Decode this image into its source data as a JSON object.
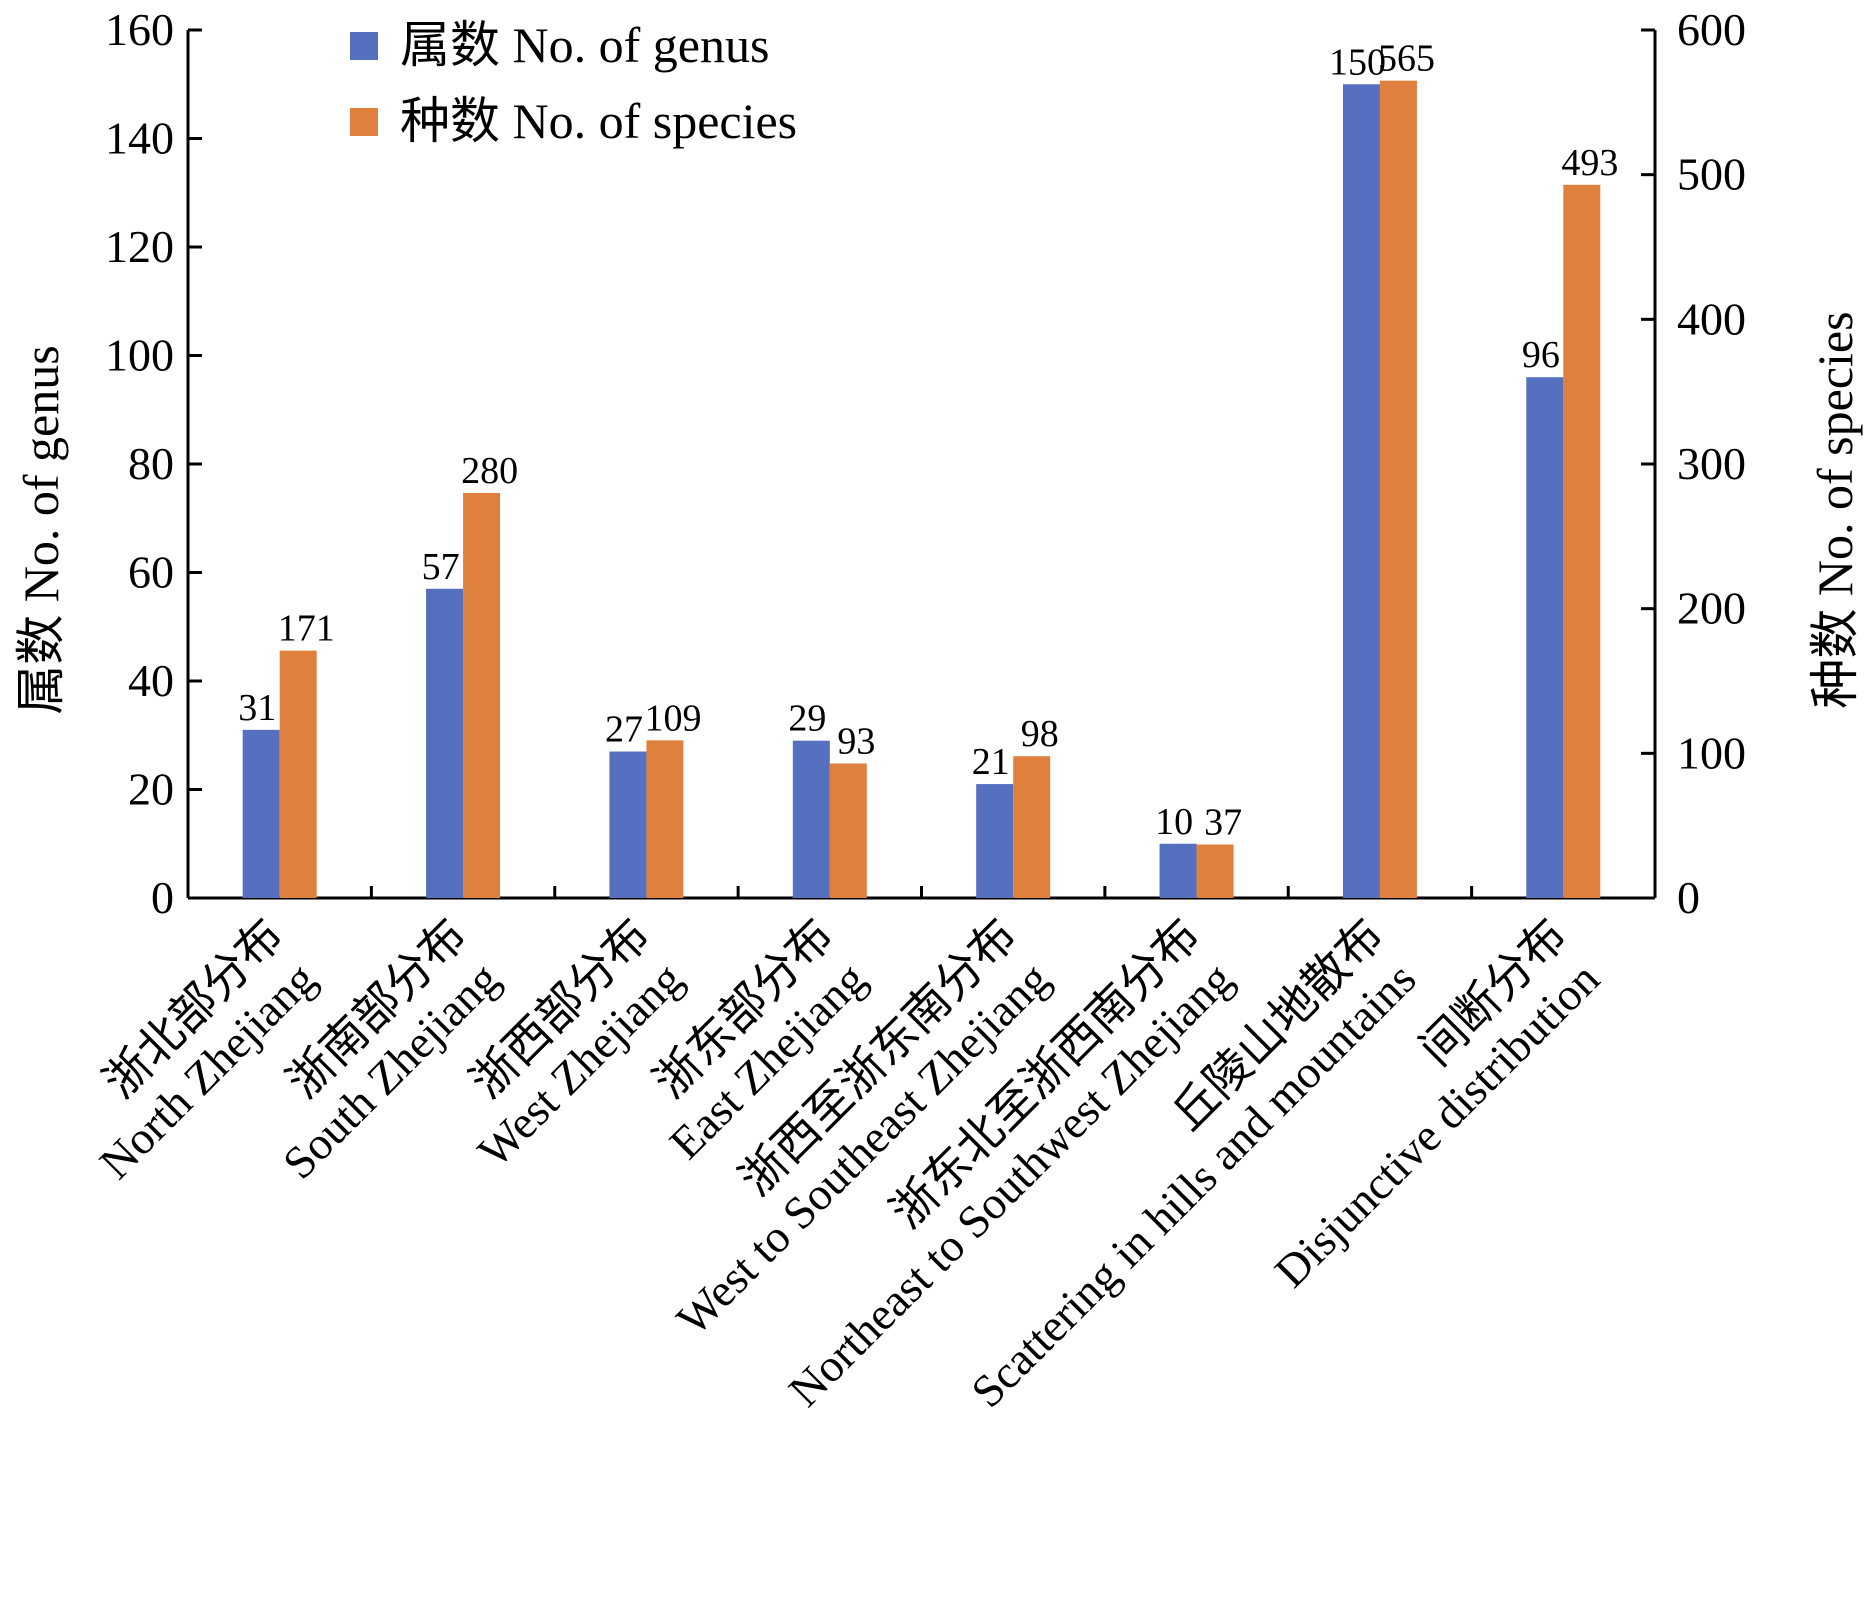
{
  "chart_data": {
    "type": "bar",
    "categories": [
      [
        "浙北部分布",
        "North Zhejiang"
      ],
      [
        "浙南部分布",
        "South Zhejiang"
      ],
      [
        "浙西部分布",
        "West Zhejiang"
      ],
      [
        "浙东部分布",
        "East Zhejiang"
      ],
      [
        "浙西至浙东南分布",
        "West to Southeast Zhejiang"
      ],
      [
        "浙东北至浙西南分布",
        "Northeast to Southwest Zhejiang"
      ],
      [
        "丘陵山地散布",
        "Scattering in hills and mountains"
      ],
      [
        "间断分布",
        "Disjunctive distribution"
      ]
    ],
    "series": [
      {
        "name": "属数 No. of genus",
        "axis": "left",
        "color": "#5470bf",
        "values": [
          31,
          57,
          27,
          29,
          21,
          10,
          150,
          96
        ],
        "labels": [
          "31",
          "57",
          "27",
          "29",
          "21",
          "10",
          "150",
          "96"
        ]
      },
      {
        "name": "种数 No. of species",
        "axis": "right",
        "color": "#e0803f",
        "values": [
          171,
          280,
          109,
          93,
          98,
          37,
          565,
          493
        ],
        "labels": [
          "171",
          "280",
          "109",
          "93",
          "98",
          "37",
          "565",
          "493"
        ]
      }
    ],
    "y_left": {
      "label": "属数 No. of genus",
      "min": 0,
      "max": 160,
      "ticks": [
        "0",
        "20",
        "40",
        "60",
        "80",
        "100",
        "120",
        "140",
        "160"
      ]
    },
    "y_right": {
      "label": "种数 No. of species",
      "min": 0,
      "max": 600,
      "ticks": [
        "0",
        "100",
        "200",
        "300",
        "400",
        "500",
        "600"
      ]
    },
    "legend": "top-left",
    "grid": false
  }
}
